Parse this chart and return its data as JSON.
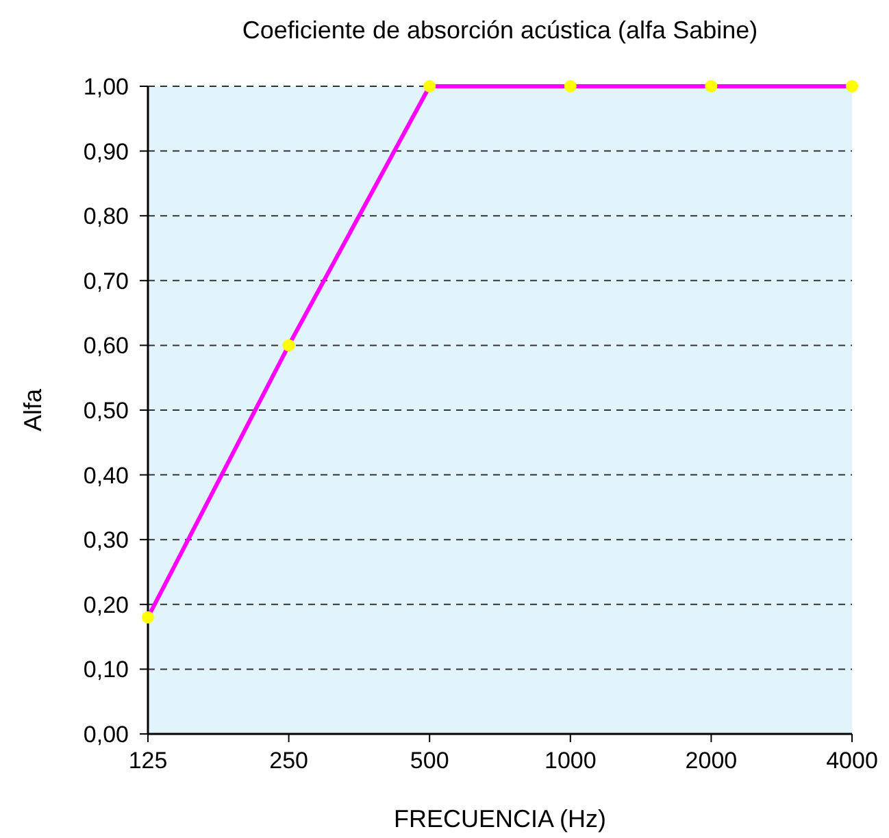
{
  "chart_data": {
    "type": "line",
    "title": "Coeficiente de absorción acústica (alfa Sabine)",
    "xlabel": "FRECUENCIA (Hz)",
    "ylabel": "Alfa",
    "categories": [
      "125",
      "250",
      "500",
      "1000",
      "2000",
      "4000"
    ],
    "series": [
      {
        "color": "#ff00ff",
        "values": [
          0.18,
          0.6,
          1.0,
          1.0,
          1.0,
          1.0
        ]
      }
    ],
    "marker": "circle",
    "ylim": [
      0,
      1
    ],
    "yticks": [
      {
        "value": 0,
        "label": "0,00"
      },
      {
        "value": 0.1,
        "label": "0,10"
      },
      {
        "value": 0.2,
        "label": "0,20"
      },
      {
        "value": 0.3,
        "label": "0,30"
      },
      {
        "value": 0.4,
        "label": "0,40"
      },
      {
        "value": 0.5,
        "label": "0,50"
      },
      {
        "value": 0.6,
        "label": "0,60"
      },
      {
        "value": 0.7,
        "label": "0,70"
      },
      {
        "value": 0.8,
        "label": "0,80"
      },
      {
        "value": 0.9,
        "label": "0,90"
      },
      {
        "value": 1,
        "label": "1,00"
      }
    ],
    "grid": "y",
    "line_style": "solid"
  }
}
